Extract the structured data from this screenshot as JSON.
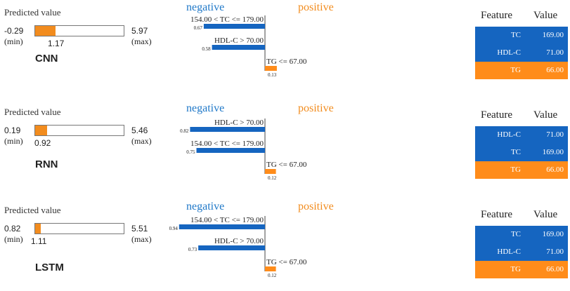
{
  "colors": {
    "negative": "#1565c0",
    "positive": "#ff8c1a",
    "neg_text": "#1f78c8"
  },
  "panels": [
    {
      "model": "CNN",
      "predicted_title": "Predicted value",
      "min": "-0.29",
      "max": "5.97",
      "predicted": "1.17",
      "min_label": "(min)",
      "max_label": "(max)",
      "negative_label": "negative",
      "positive_label": "positive",
      "table_header": {
        "feature": "Feature",
        "value": "Value"
      },
      "rows": [
        {
          "feature": "TC",
          "value": "169.00",
          "sign": "neg"
        },
        {
          "feature": "HDL-C",
          "value": "71.00",
          "sign": "neg"
        },
        {
          "feature": "TG",
          "value": "66.00",
          "sign": "pos"
        }
      ]
    },
    {
      "model": "RNN",
      "predicted_title": "Predicted value",
      "min": "0.19",
      "max": "5.46",
      "predicted": "0.92",
      "min_label": "(min)",
      "max_label": "(max)",
      "negative_label": "negative",
      "positive_label": "positive",
      "table_header": {
        "feature": "Feature",
        "value": "Value"
      },
      "rows": [
        {
          "feature": "HDL-C",
          "value": "71.00",
          "sign": "neg"
        },
        {
          "feature": "TC",
          "value": "169.00",
          "sign": "neg"
        },
        {
          "feature": "TG",
          "value": "66.00",
          "sign": "pos"
        }
      ]
    },
    {
      "model": "LSTM",
      "predicted_title": "Predicted value",
      "min": "0.82",
      "max": "5.51",
      "predicted": "1.11",
      "min_label": "(min)",
      "max_label": "(max)",
      "negative_label": "negative",
      "positive_label": "positive",
      "table_header": {
        "feature": "Feature",
        "value": "Value"
      },
      "rows": [
        {
          "feature": "TC",
          "value": "169.00",
          "sign": "neg"
        },
        {
          "feature": "HDL-C",
          "value": "71.00",
          "sign": "neg"
        },
        {
          "feature": "TG",
          "value": "66.00",
          "sign": "pos"
        }
      ]
    }
  ],
  "chart_data": [
    {
      "type": "bar",
      "model": "CNN",
      "categories": [
        "154.00 < TC <= 179.00",
        "HDL-C > 70.00",
        "TG <= 67.00"
      ],
      "values": [
        -0.67,
        -0.58,
        0.13
      ],
      "value_labels": [
        "0.67",
        "0.58",
        "0.13"
      ],
      "xlim": [
        -1.0,
        0.3
      ]
    },
    {
      "type": "bar",
      "model": "RNN",
      "categories": [
        "HDL-C > 70.00",
        "154.00 < TC <= 179.00",
        "TG <= 67.00"
      ],
      "values": [
        -0.82,
        -0.75,
        0.12
      ],
      "value_labels": [
        "0.82",
        "0.75",
        "0.12"
      ],
      "xlim": [
        -1.0,
        0.3
      ]
    },
    {
      "type": "bar",
      "model": "LSTM",
      "categories": [
        "154.00 < TC <= 179.00",
        "HDL-C > 70.00",
        "TG <= 67.00"
      ],
      "values": [
        -0.94,
        -0.73,
        0.12
      ],
      "value_labels": [
        "0.94",
        "0.73",
        "0.12"
      ],
      "xlim": [
        -1.0,
        0.3
      ]
    }
  ]
}
